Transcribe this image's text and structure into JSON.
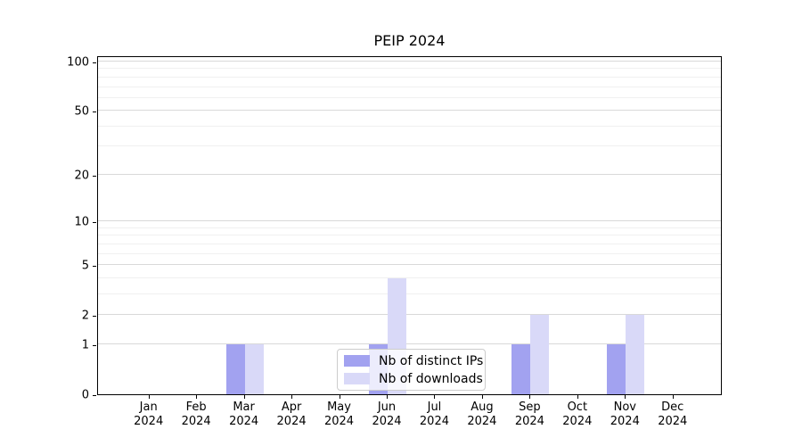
{
  "title": "PEIP 2024",
  "chart_data": {
    "type": "bar",
    "title": "PEIP 2024",
    "categories": [
      "Jan 2024",
      "Feb 2024",
      "Mar 2024",
      "Apr 2024",
      "May 2024",
      "Jun 2024",
      "Jul 2024",
      "Aug 2024",
      "Sep 2024",
      "Oct 2024",
      "Nov 2024",
      "Dec 2024"
    ],
    "series": [
      {
        "name": "Nb of distinct IPs",
        "color": "#a2a2f0",
        "values": [
          0,
          0,
          1,
          0,
          0,
          1,
          0,
          0,
          1,
          0,
          1,
          0
        ]
      },
      {
        "name": "Nb of downloads",
        "color": "#d9d9f8",
        "values": [
          0,
          0,
          1,
          0,
          0,
          4,
          0,
          0,
          2,
          0,
          2,
          0
        ]
      }
    ],
    "xlabel": "",
    "ylabel": "",
    "scale": "log1p",
    "yticks": [
      0,
      1,
      2,
      5,
      10,
      20,
      50,
      100
    ],
    "minor_gridlines": [
      3,
      4,
      6,
      7,
      8,
      9,
      30,
      40,
      60,
      70,
      80,
      90
    ],
    "ylim": [
      0,
      109
    ],
    "grid": true,
    "legend_position": "lower center",
    "colors": {
      "major_grid": "#d9d9d9",
      "minor_grid": "#f0f0f0",
      "spine": "#000000",
      "legend_border": "#cccccc"
    }
  }
}
